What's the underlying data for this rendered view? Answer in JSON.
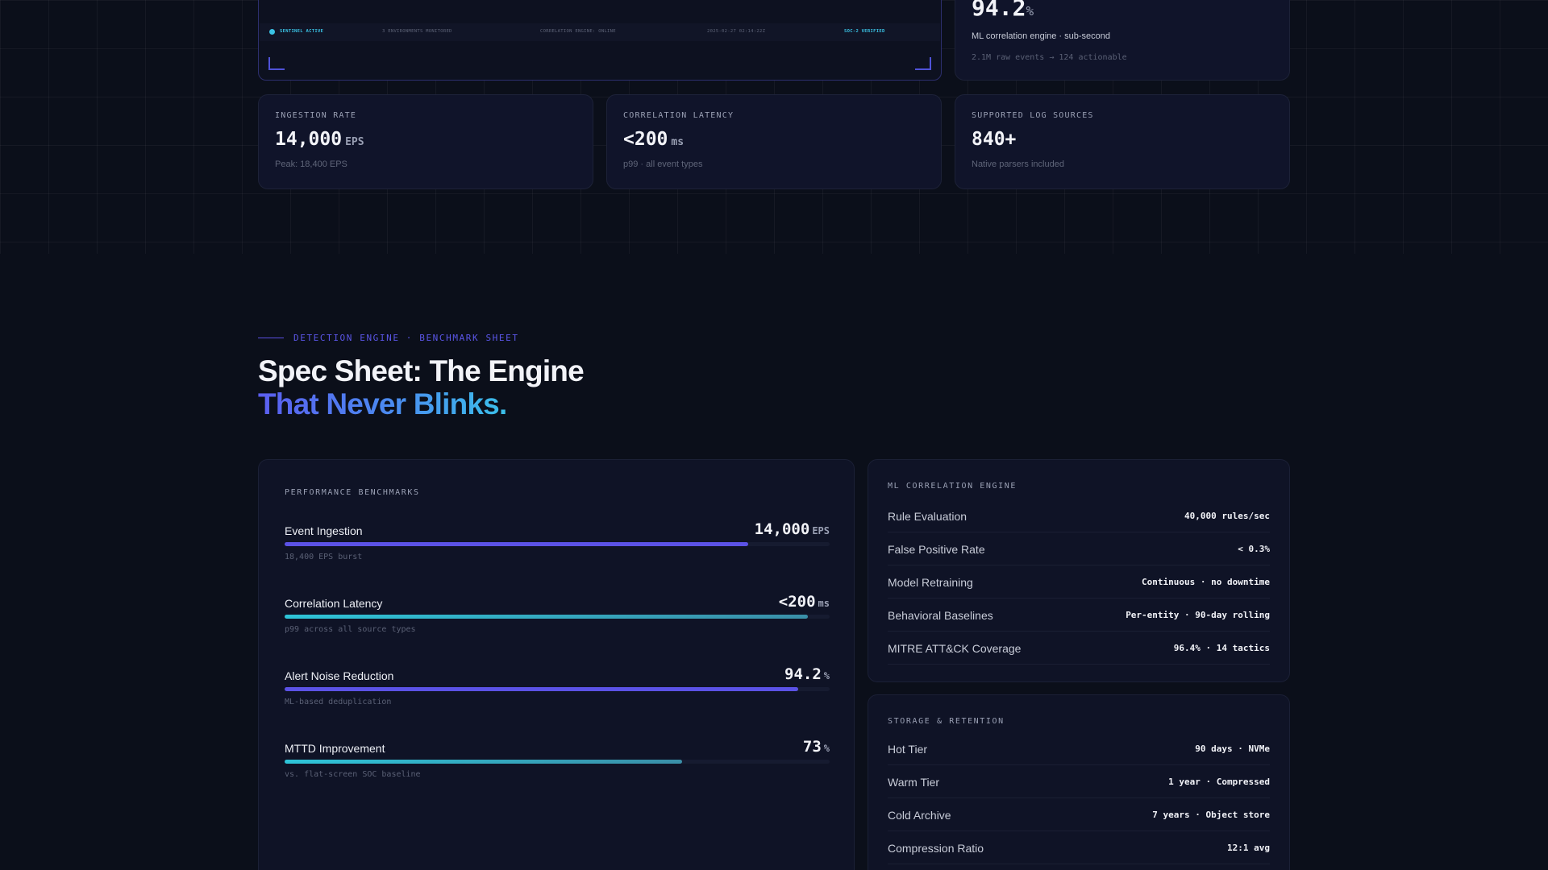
{
  "hero": {
    "terminal": {
      "status": [
        "SENTINEL ACTIVE",
        "3 ENVIRONMENTS MONITORED",
        "CORRELATION ENGINE: ONLINE",
        "2025-02-27 02:14:22Z",
        "SOC-2 VERIFIED"
      ]
    },
    "noise_card": {
      "value": "94.2",
      "unit": "%",
      "desc": "ML correlation engine · sub-second",
      "sub": "2.1M raw events → 124 actionable"
    },
    "stats": [
      {
        "label": "INGESTION RATE",
        "value": "14,000",
        "unit": "EPS",
        "sub": "Peak: 18,400 EPS"
      },
      {
        "label": "CORRELATION LATENCY",
        "value": "<200",
        "unit": "ms",
        "sub": "p99 · all event types"
      },
      {
        "label": "SUPPORTED LOG SOURCES",
        "value": "840+",
        "unit": "",
        "sub": "Native parsers included"
      }
    ]
  },
  "section": {
    "eyebrow": "DETECTION ENGINE · BENCHMARK SHEET",
    "title_line1": "Spec Sheet: The Engine",
    "title_line2": "That Never Blinks."
  },
  "benchmarks": {
    "title": "PERFORMANCE BENCHMARKS",
    "items": [
      {
        "name": "Event Ingestion",
        "value": "14,000",
        "unit": "EPS",
        "note": "18,400 EPS burst",
        "fill": 0.85,
        "color": "indigo"
      },
      {
        "name": "Correlation Latency",
        "value": "<200",
        "unit": "ms",
        "note": "p99 across all source types",
        "fill": 0.96,
        "color": "teal"
      },
      {
        "name": "Alert Noise Reduction",
        "value": "94.2",
        "unit": "%",
        "note": "ML-based deduplication",
        "fill": 0.942,
        "color": "indigo"
      },
      {
        "name": "MTTD Improvement",
        "value": "73",
        "unit": "%",
        "note": "vs. flat-screen SOC baseline",
        "fill": 0.73,
        "color": "teal"
      }
    ]
  },
  "ml_engine": {
    "title": "ML CORRELATION ENGINE",
    "rows": [
      {
        "k": "Rule Evaluation",
        "v": "40,000 rules/sec"
      },
      {
        "k": "False Positive Rate",
        "v": "< 0.3%"
      },
      {
        "k": "Model Retraining",
        "v": "Continuous · no downtime"
      },
      {
        "k": "Behavioral Baselines",
        "v": "Per-entity · 90-day rolling"
      },
      {
        "k": "MITRE ATT&CK Coverage",
        "v": "96.4% · 14 tactics"
      }
    ]
  },
  "storage": {
    "title": "STORAGE & RETENTION",
    "rows": [
      {
        "k": "Hot Tier",
        "v": "90 days · NVMe"
      },
      {
        "k": "Warm Tier",
        "v": "1 year · Compressed"
      },
      {
        "k": "Cold Archive",
        "v": "7 years · Object store"
      },
      {
        "k": "Compression Ratio",
        "v": "12:1 avg"
      }
    ]
  },
  "colors": {
    "indigo": "#5b52e6",
    "teal_start": "#2ec4d8",
    "teal_end": "#3a8fa8",
    "accent_text": "#5b56e8"
  }
}
